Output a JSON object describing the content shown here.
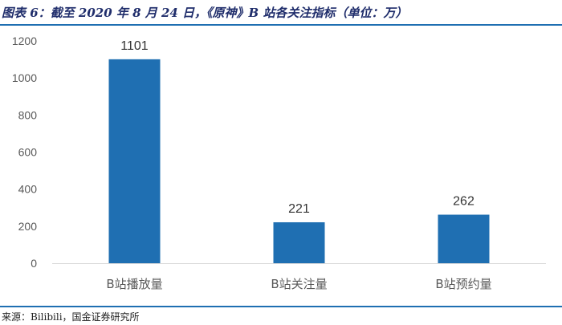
{
  "header": {
    "title": "图表 6：截至 2020 年 8 月 24 日，《原神》B 站各关注指标（单位：万）"
  },
  "footer": {
    "source": "来源：Bilibili，国金证券研究所"
  },
  "colors": {
    "bar": "#1f6fb2",
    "rule": "#1f6fb2",
    "axis_text": "#595959"
  },
  "chart_data": {
    "type": "bar",
    "categories": [
      "B站播放量",
      "B站关注量",
      "B站预约量"
    ],
    "values": [
      1101,
      221,
      262
    ],
    "data_labels": [
      "1101",
      "221",
      "262"
    ],
    "y_ticks": [
      "0",
      "200",
      "400",
      "600",
      "800",
      "1000",
      "1200"
    ],
    "ylim": [
      0,
      1200
    ],
    "grid": false,
    "legend": "none"
  }
}
